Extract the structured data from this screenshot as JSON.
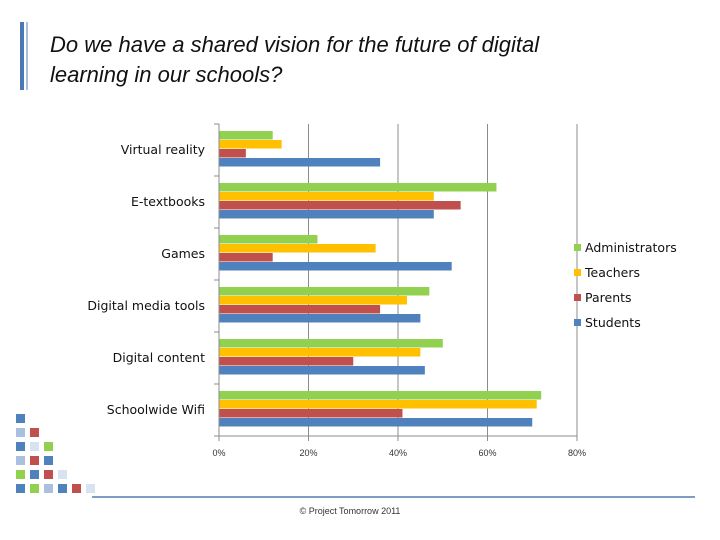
{
  "slide": {
    "title_line1": "Do we have a shared vision for the future of digital",
    "title_line2": "learning in our schools?",
    "footer": "© Project Tomorrow 2011"
  },
  "colors": {
    "Administrators": "#92d050",
    "Teachers": "#ffc000",
    "Parents": "#c0504d",
    "Students": "#4f81bd"
  },
  "chart_data": {
    "type": "bar",
    "orientation": "horizontal",
    "categories": [
      "Virtual reality",
      "E-textbooks",
      "Games",
      "Digital media tools",
      "Digital content",
      "Schoolwide Wifi"
    ],
    "series": [
      {
        "name": "Administrators",
        "values": [
          12,
          62,
          22,
          47,
          50,
          72
        ]
      },
      {
        "name": "Teachers",
        "values": [
          14,
          48,
          35,
          42,
          45,
          71
        ]
      },
      {
        "name": "Parents",
        "values": [
          6,
          54,
          12,
          36,
          30,
          41
        ]
      },
      {
        "name": "Students",
        "values": [
          36,
          48,
          52,
          45,
          46,
          70
        ]
      }
    ],
    "xticks": [
      "0%",
      "20%",
      "40%",
      "60%",
      "80%"
    ],
    "xlim": [
      0,
      80
    ],
    "grid": true,
    "legend": "right"
  }
}
